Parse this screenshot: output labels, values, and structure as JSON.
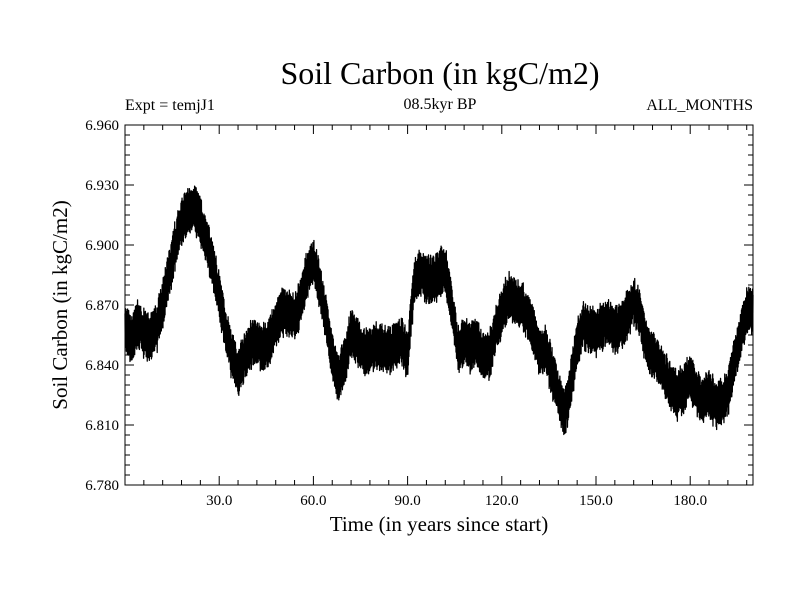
{
  "chart_data": {
    "type": "line",
    "title": "Soil Carbon (in kgC/m2)",
    "subtitle": "08.5kyr BP",
    "left_note": "Expt = temjJ1",
    "right_note": "ALL_MONTHS",
    "xlabel": "Time (in years since start)",
    "ylabel": "Soil Carbon (in kgC/m2)",
    "xlim": [
      0,
      200
    ],
    "ylim": [
      6.78,
      6.96
    ],
    "x_ticks": [
      30,
      60,
      90,
      120,
      150,
      180
    ],
    "x_tick_labels": [
      "30.0",
      "60.0",
      "90.0",
      "120.0",
      "150.0",
      "180.0"
    ],
    "y_ticks": [
      6.78,
      6.81,
      6.84,
      6.87,
      6.9,
      6.93,
      6.96
    ],
    "y_tick_labels": [
      "6.780",
      "6.810",
      "6.840",
      "6.870",
      "6.900",
      "6.930",
      "6.960"
    ],
    "line_color": "#000000",
    "series": [
      {
        "name": "Soil Carbon",
        "x": [
          0,
          2,
          4,
          6,
          8,
          10,
          12,
          14,
          16,
          18,
          20,
          22,
          24,
          26,
          28,
          30,
          32,
          34,
          36,
          38,
          40,
          42,
          44,
          46,
          48,
          50,
          52,
          54,
          56,
          58,
          60,
          62,
          64,
          66,
          68,
          70,
          72,
          74,
          76,
          78,
          80,
          82,
          84,
          86,
          88,
          90,
          92,
          94,
          96,
          98,
          100,
          102,
          104,
          106,
          108,
          110,
          112,
          114,
          116,
          118,
          120,
          122,
          124,
          126,
          128,
          130,
          132,
          134,
          136,
          138,
          140,
          142,
          144,
          146,
          148,
          150,
          152,
          154,
          156,
          158,
          160,
          162,
          164,
          166,
          168,
          170,
          172,
          174,
          176,
          178,
          180,
          182,
          184,
          186,
          188,
          190,
          192,
          194,
          196,
          198,
          200
        ],
        "values": [
          6.858,
          6.852,
          6.86,
          6.856,
          6.853,
          6.858,
          6.87,
          6.885,
          6.9,
          6.912,
          6.916,
          6.92,
          6.912,
          6.902,
          6.89,
          6.875,
          6.858,
          6.845,
          6.835,
          6.845,
          6.85,
          6.852,
          6.848,
          6.852,
          6.86,
          6.866,
          6.866,
          6.864,
          6.872,
          6.885,
          6.892,
          6.88,
          6.862,
          6.845,
          6.832,
          6.843,
          6.855,
          6.852,
          6.846,
          6.848,
          6.85,
          6.848,
          6.848,
          6.85,
          6.852,
          6.845,
          6.88,
          6.888,
          6.882,
          6.882,
          6.886,
          6.888,
          6.87,
          6.848,
          6.852,
          6.848,
          6.852,
          6.845,
          6.844,
          6.858,
          6.866,
          6.874,
          6.872,
          6.87,
          6.866,
          6.858,
          6.845,
          6.848,
          6.836,
          6.826,
          6.815,
          6.83,
          6.85,
          6.86,
          6.858,
          6.856,
          6.86,
          6.862,
          6.858,
          6.86,
          6.865,
          6.872,
          6.865,
          6.85,
          6.846,
          6.842,
          6.835,
          6.828,
          6.825,
          6.828,
          6.835,
          6.826,
          6.822,
          6.826,
          6.82,
          6.822,
          6.826,
          6.842,
          6.855,
          6.866,
          6.868
        ]
      }
    ]
  }
}
